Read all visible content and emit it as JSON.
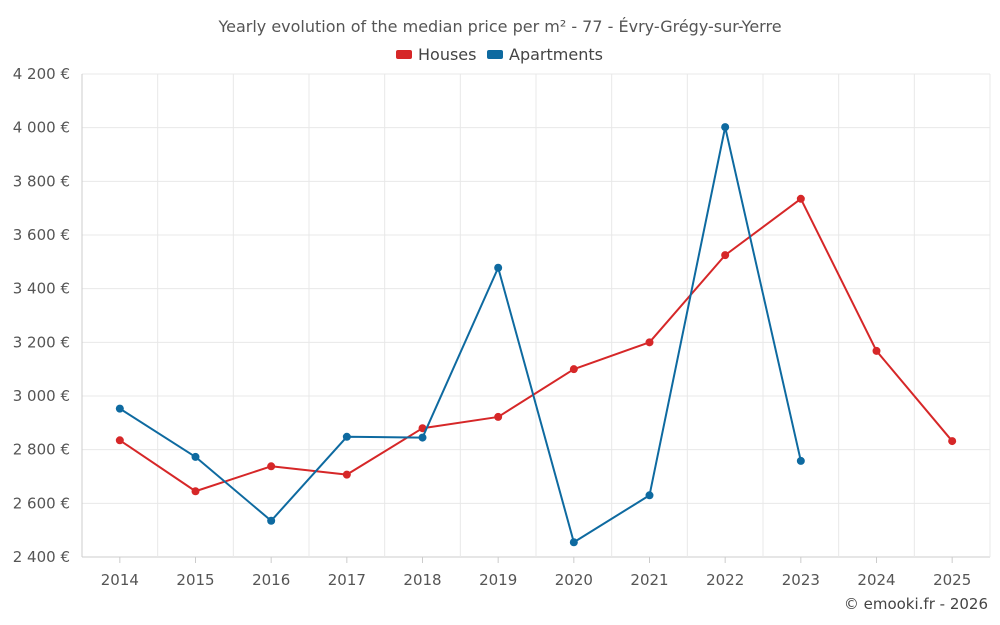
{
  "chart_data": {
    "type": "line",
    "title": "Yearly evolution of the median price per m² - 77 - Évry-Grégy-sur-Yerre",
    "categories": [
      "2014",
      "2015",
      "2016",
      "2017",
      "2018",
      "2019",
      "2020",
      "2021",
      "2022",
      "2023",
      "2024",
      "2025"
    ],
    "series": [
      {
        "name": "Houses",
        "color": "#d62728",
        "values": [
          2835,
          2645,
          2738,
          2707,
          2880,
          2922,
          3100,
          3200,
          3525,
          3735,
          3168,
          2832
        ]
      },
      {
        "name": "Apartments",
        "color": "#0e6aa0",
        "values": [
          2953,
          2773,
          2535,
          2848,
          2845,
          3478,
          2455,
          2630,
          4002,
          2758,
          null,
          null
        ]
      }
    ],
    "ylim": [
      2400,
      4200
    ],
    "yticks": [
      2400,
      2600,
      2800,
      3000,
      3200,
      3400,
      3600,
      3800,
      4000,
      4200
    ],
    "ytick_labels": [
      "2 400 €",
      "2 600 €",
      "2 800 €",
      "3 000 €",
      "3 200 €",
      "3 400 €",
      "3 600 €",
      "3 800 €",
      "4 000 €",
      "4 200 €"
    ],
    "legend_position": "top-center",
    "grid": true
  },
  "credit": "© emooki.fr - 2026"
}
